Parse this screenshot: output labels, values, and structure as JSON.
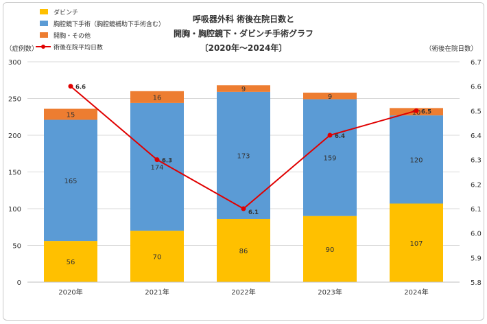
{
  "chart_data": {
    "type": "bar",
    "subtype": "stacked-bar-with-line-secondary-axis",
    "title_lines": [
      "呼吸器外科 術後在院日数と",
      "開胸・胸腔鏡下・ダビンチ手術グラフ",
      "〔2020年～2024年〕"
    ],
    "y_left_label": "（症例数）",
    "y_right_label": "（術後在院日数）",
    "categories": [
      "2020年",
      "2021年",
      "2022年",
      "2023年",
      "2024年"
    ],
    "ylim": [
      0,
      300
    ],
    "y_ticks": [
      "0",
      "50",
      "100",
      "150",
      "200",
      "250",
      "300"
    ],
    "y2lim": [
      5.8,
      6.7
    ],
    "y2_ticks": [
      "5.8",
      "5.9",
      "6.0",
      "6.1",
      "6.2",
      "6.3",
      "6.4",
      "6.5",
      "6.6",
      "6.7"
    ],
    "series": [
      {
        "name": "ダビンチ",
        "color": "#ffc000",
        "values": [
          56,
          70,
          86,
          90,
          107
        ],
        "labels": [
          "56",
          "70",
          "86",
          "90",
          "107"
        ]
      },
      {
        "name": "胸腔鏡下手術（胸腔鏡補助下手術含む）",
        "color": "#5b9bd5",
        "values": [
          165,
          174,
          173,
          159,
          120
        ],
        "labels": [
          "165",
          "174",
          "173",
          "159",
          "120"
        ]
      },
      {
        "name": "開胸・その他",
        "color": "#ed7d31",
        "values": [
          15,
          16,
          9,
          9,
          10
        ],
        "labels": [
          "15",
          "16",
          "9",
          "9",
          "10"
        ]
      }
    ],
    "line_series": {
      "name": "術後在院平均日数",
      "color": "#e00000",
      "values": [
        6.6,
        6.3,
        6.1,
        6.4,
        6.5
      ],
      "labels": [
        "6.6",
        "6.3",
        "6.1",
        "6.4",
        "6.5"
      ]
    },
    "grid": true,
    "legend_position": "top-left"
  }
}
